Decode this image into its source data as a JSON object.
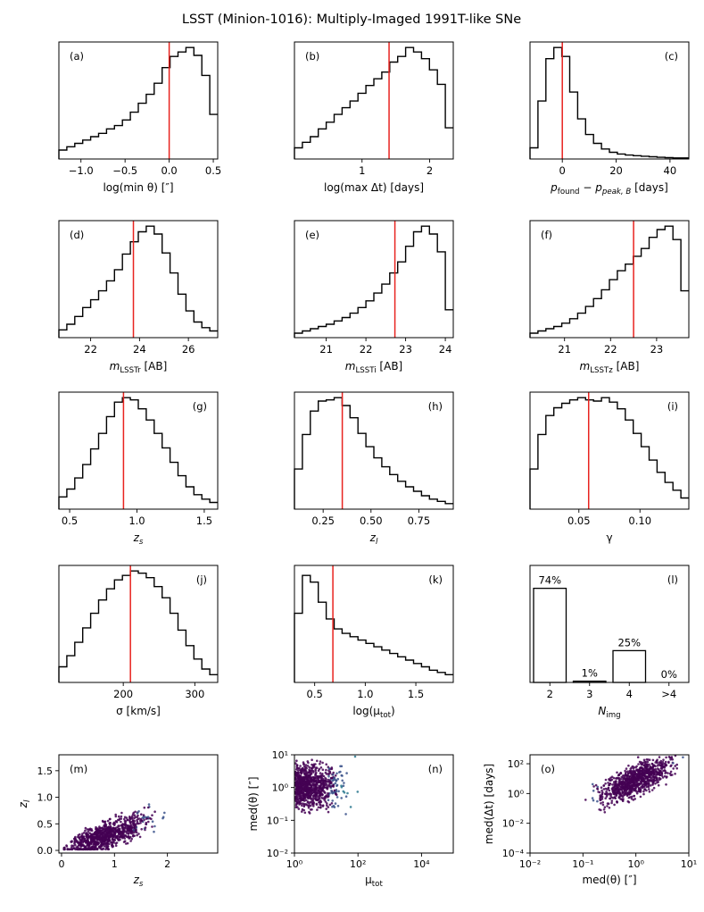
{
  "title": "LSST (Minion-1016): Multiply-Imaged 1991T-like SNe",
  "colors": {
    "hist": "#000000",
    "median": "#e8231f",
    "scatter_low": "#440154",
    "scatter_mid": "#2a788e",
    "scatter_high": "#fde725"
  },
  "chart_data": [
    {
      "id": "a",
      "type": "histogram",
      "label": "(a)",
      "label_pos": "top-left",
      "xlabel": "log(min θ) [″]",
      "xlim": [
        -1.25,
        0.55
      ],
      "bin_width": 0.09,
      "bin_start": -1.25,
      "ylim": [
        0,
        1.05
      ],
      "values": [
        0.08,
        0.11,
        0.14,
        0.17,
        0.2,
        0.23,
        0.27,
        0.3,
        0.35,
        0.42,
        0.5,
        0.58,
        0.68,
        0.82,
        0.92,
        0.96,
        1.0,
        0.93,
        0.75,
        0.4
      ],
      "median": 0.0,
      "ticks": [
        -1.0,
        -0.5,
        0.0,
        0.5
      ],
      "tick_labels": [
        "−1.0",
        "−0.5",
        "0.0",
        "0.5"
      ]
    },
    {
      "id": "b",
      "type": "histogram",
      "label": "(b)",
      "label_pos": "top-left",
      "xlabel": "log(max Δt) [days]",
      "xlim": [
        0.0,
        2.35
      ],
      "bin_width": 0.1175,
      "bin_start": 0.0,
      "ylim": [
        0,
        1.05
      ],
      "values": [
        0.1,
        0.15,
        0.2,
        0.27,
        0.33,
        0.4,
        0.46,
        0.52,
        0.59,
        0.66,
        0.72,
        0.78,
        0.87,
        0.92,
        1.0,
        0.96,
        0.9,
        0.8,
        0.67,
        0.28
      ],
      "median": 1.4,
      "ticks": [
        1,
        2
      ],
      "tick_labels": [
        "1",
        "2"
      ]
    },
    {
      "id": "c",
      "type": "histogram",
      "label": "(c)",
      "label_pos": "top-right",
      "xlabel": "p_found − p_peak,B [days]",
      "xlim": [
        -12,
        47
      ],
      "bin_width": 2.95,
      "bin_start": -12,
      "ylim": [
        0,
        1.05
      ],
      "values": [
        0.1,
        0.52,
        0.9,
        1.0,
        0.92,
        0.6,
        0.36,
        0.22,
        0.14,
        0.09,
        0.06,
        0.045,
        0.035,
        0.03,
        0.025,
        0.02,
        0.015,
        0.012,
        0.01,
        0.01
      ],
      "median": 0,
      "ticks": [
        0,
        20,
        40
      ],
      "tick_labels": [
        "0",
        "20",
        "40"
      ]
    },
    {
      "id": "d",
      "type": "histogram",
      "label": "(d)",
      "label_pos": "top-left",
      "xlabel": "m_LSSTr [AB]",
      "xlim": [
        20.7,
        27.2
      ],
      "bin_width": 0.325,
      "bin_start": 20.7,
      "ylim": [
        0,
        1.05
      ],
      "values": [
        0.07,
        0.12,
        0.19,
        0.27,
        0.34,
        0.42,
        0.51,
        0.61,
        0.75,
        0.86,
        0.95,
        1.0,
        0.93,
        0.76,
        0.58,
        0.39,
        0.24,
        0.14,
        0.09,
        0.06
      ],
      "median": 23.75,
      "ticks": [
        22,
        24,
        26
      ],
      "tick_labels": [
        "22",
        "24",
        "26"
      ]
    },
    {
      "id": "e",
      "type": "histogram",
      "label": "(e)",
      "label_pos": "top-left",
      "xlabel": "m_LSSTi [AB]",
      "xlim": [
        20.2,
        24.2
      ],
      "bin_width": 0.2,
      "bin_start": 20.2,
      "ylim": [
        0,
        1.05
      ],
      "values": [
        0.04,
        0.06,
        0.08,
        0.1,
        0.12,
        0.15,
        0.18,
        0.22,
        0.27,
        0.33,
        0.4,
        0.48,
        0.58,
        0.68,
        0.82,
        0.95,
        1.0,
        0.93,
        0.77,
        0.25
      ],
      "median": 22.73,
      "ticks": [
        21,
        22,
        23,
        24
      ],
      "tick_labels": [
        "21",
        "22",
        "23",
        "24"
      ]
    },
    {
      "id": "f",
      "type": "histogram",
      "label": "(f)",
      "label_pos": "top-left",
      "xlabel": "m_LSSTz [AB]",
      "xlim": [
        20.25,
        23.7
      ],
      "bin_width": 0.1725,
      "bin_start": 20.25,
      "ylim": [
        0,
        1.05
      ],
      "values": [
        0.04,
        0.06,
        0.08,
        0.1,
        0.13,
        0.17,
        0.22,
        0.28,
        0.35,
        0.43,
        0.52,
        0.6,
        0.66,
        0.73,
        0.8,
        0.9,
        0.97,
        1.0,
        0.88,
        0.42
      ],
      "median": 22.5,
      "ticks": [
        21,
        22,
        23
      ],
      "tick_labels": [
        "21",
        "22",
        "23"
      ]
    },
    {
      "id": "g",
      "type": "histogram",
      "label": "(g)",
      "label_pos": "top-right",
      "xlabel": "z_s",
      "xlim": [
        0.42,
        1.6
      ],
      "bin_width": 0.059,
      "bin_start": 0.42,
      "ylim": [
        0,
        1.05
      ],
      "values": [
        0.11,
        0.18,
        0.28,
        0.4,
        0.54,
        0.68,
        0.83,
        0.96,
        1.0,
        0.98,
        0.9,
        0.8,
        0.68,
        0.55,
        0.42,
        0.3,
        0.2,
        0.13,
        0.09,
        0.06
      ],
      "median": 0.9,
      "ticks": [
        0.5,
        1.0,
        1.5
      ],
      "tick_labels": [
        "0.5",
        "1.0",
        "1.5"
      ]
    },
    {
      "id": "h",
      "type": "histogram",
      "label": "(h)",
      "label_pos": "top-right",
      "xlabel": "z_l",
      "xlim": [
        0.1,
        0.93
      ],
      "bin_width": 0.0415,
      "bin_start": 0.1,
      "ylim": [
        0,
        1.05
      ],
      "values": [
        0.36,
        0.67,
        0.88,
        0.97,
        0.98,
        1.0,
        0.93,
        0.82,
        0.68,
        0.56,
        0.46,
        0.38,
        0.31,
        0.25,
        0.2,
        0.16,
        0.12,
        0.09,
        0.07,
        0.05
      ],
      "median": 0.35,
      "ticks": [
        0.25,
        0.5,
        0.75
      ],
      "tick_labels": [
        "0.25",
        "0.50",
        "0.75"
      ]
    },
    {
      "id": "i",
      "type": "histogram",
      "label": "(i)",
      "label_pos": "top-right",
      "xlabel": "γ",
      "xlim": [
        0.01,
        0.14
      ],
      "bin_width": 0.0065,
      "bin_start": 0.01,
      "ylim": [
        0,
        1.05
      ],
      "values": [
        0.36,
        0.67,
        0.84,
        0.91,
        0.95,
        0.98,
        1.0,
        0.98,
        0.97,
        1.0,
        0.96,
        0.9,
        0.8,
        0.68,
        0.56,
        0.44,
        0.33,
        0.24,
        0.17,
        0.1
      ],
      "median": 0.058,
      "ticks": [
        0.05,
        0.1
      ],
      "tick_labels": [
        "0.05",
        "0.10"
      ]
    },
    {
      "id": "j",
      "type": "histogram",
      "label": "(j)",
      "label_pos": "top-right",
      "xlabel": "σ [km/s]",
      "xlim": [
        110,
        332
      ],
      "bin_width": 11.1,
      "bin_start": 110,
      "ylim": [
        0,
        1.05
      ],
      "values": [
        0.14,
        0.24,
        0.36,
        0.49,
        0.62,
        0.74,
        0.84,
        0.92,
        0.96,
        1.0,
        0.98,
        0.94,
        0.86,
        0.76,
        0.62,
        0.47,
        0.33,
        0.21,
        0.12,
        0.07
      ],
      "median": 210,
      "ticks": [
        200,
        300
      ],
      "tick_labels": [
        "200",
        "300"
      ]
    },
    {
      "id": "k",
      "type": "histogram",
      "label": "(k)",
      "label_pos": "top-right",
      "xlabel": "log(μ_tot)",
      "xlim": [
        0.3,
        1.87
      ],
      "bin_width": 0.0785,
      "bin_start": 0.3,
      "ylim": [
        0,
        1.05
      ],
      "values": [
        0.62,
        0.96,
        0.9,
        0.72,
        0.57,
        0.48,
        0.44,
        0.41,
        0.38,
        0.35,
        0.32,
        0.29,
        0.26,
        0.23,
        0.2,
        0.17,
        0.14,
        0.11,
        0.09,
        0.07
      ],
      "median": 0.68,
      "ticks": [
        0.5,
        1.0,
        1.5
      ],
      "tick_labels": [
        "0.5",
        "1.0",
        "1.5"
      ]
    },
    {
      "id": "l",
      "type": "bar",
      "label": "(l)",
      "label_pos": "top-right",
      "xlabel": "N_img",
      "categories": [
        "2",
        "3",
        "4",
        ">4"
      ],
      "values": [
        74,
        1,
        25,
        0
      ],
      "data_labels": [
        "74%",
        "1%",
        "25%",
        "0%"
      ],
      "ylim": [
        0,
        92
      ]
    },
    {
      "id": "m",
      "type": "scatter",
      "label": "(m)",
      "label_pos": "top-left",
      "xlabel": "z_s",
      "ylabel": "z_l",
      "xlim": [
        -0.05,
        2.95
      ],
      "ylim": [
        -0.05,
        1.8
      ],
      "xticks": [
        0,
        1,
        2
      ],
      "xtick_labels": [
        "0",
        "1",
        "2"
      ],
      "yticks": [
        0.0,
        0.5,
        1.0,
        1.5
      ],
      "ytick_labels": [
        "0.0",
        "0.5",
        "1.0",
        "1.5"
      ],
      "points": "sampled"
    },
    {
      "id": "n",
      "type": "scatter",
      "label": "(n)",
      "label_pos": "top-right",
      "xlabel": "μ_tot",
      "ylabel": "med(θ) [″]",
      "xscale": "log",
      "yscale": "log",
      "xlim": [
        1,
        100000
      ],
      "ylim": [
        0.01,
        10
      ],
      "xticks": [
        1,
        100,
        10000
      ],
      "xtick_labels": [
        "10⁰",
        "10²",
        "10⁴"
      ],
      "yticks": [
        0.01,
        0.1,
        1,
        10
      ],
      "ytick_labels": [
        "10⁻²",
        "10⁻¹",
        "10⁰",
        "10¹"
      ],
      "points": "sampled"
    },
    {
      "id": "o",
      "type": "scatter",
      "label": "(o)",
      "label_pos": "top-left",
      "xlabel": "med(θ) [″]",
      "ylabel": "med(Δt) [days]",
      "xscale": "log",
      "yscale": "log",
      "xlim": [
        0.01,
        10
      ],
      "ylim": [
        0.0001,
        400
      ],
      "xticks": [
        0.01,
        0.1,
        1,
        10
      ],
      "xtick_labels": [
        "10⁻²",
        "10⁻¹",
        "10⁰",
        "10¹"
      ],
      "yticks": [
        0.0001,
        0.01,
        1,
        100
      ],
      "ytick_labels": [
        "10⁻⁴",
        "10⁻²",
        "10⁰",
        "10²"
      ],
      "points": "sampled"
    }
  ]
}
